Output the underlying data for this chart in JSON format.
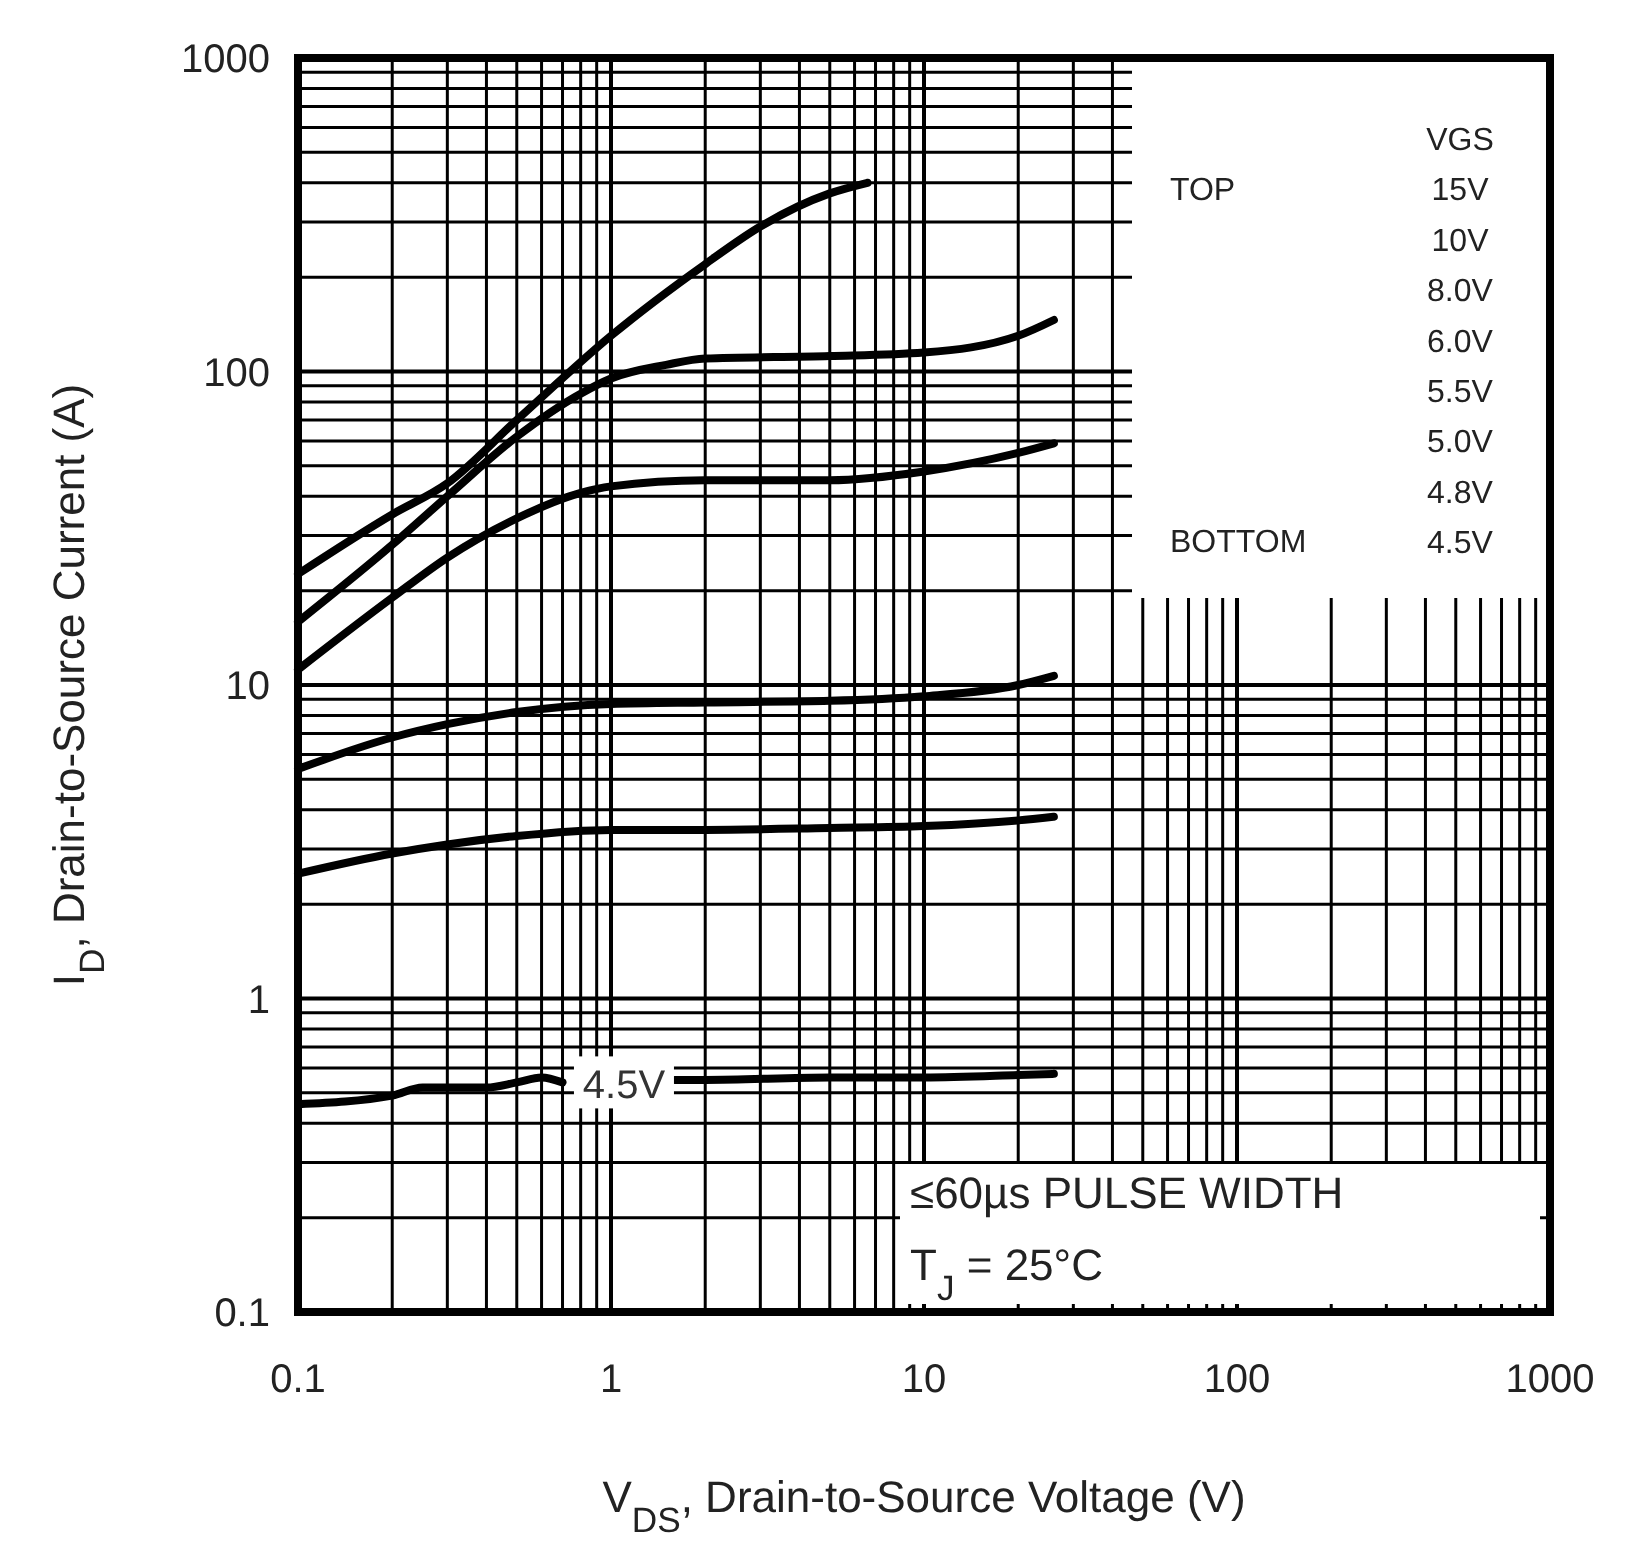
{
  "chart_data": {
    "type": "line",
    "xlabel": "V$_{DS}$, Drain-to-Source Voltage (V)",
    "ylabel": "I$_{D}$, Drain-to-Source Current (A)",
    "log": "xy",
    "xlim": [
      0.1,
      1000
    ],
    "ylim": [
      0.1,
      1000
    ],
    "xticks": [
      0.1,
      1,
      10,
      100,
      1000
    ],
    "yticks": [
      0.1,
      1,
      10,
      100,
      1000
    ],
    "grid": true,
    "line_style": "solid",
    "annotations": [
      "TOP",
      "BOTTOM",
      "VGS",
      "15V",
      "10V",
      "8.0V",
      "6.0V",
      "5.5V",
      "5.0V",
      "4.8V",
      "4.5V",
      "≤60µs PULSE WIDTH",
      "T$_{J}$ = 25°C"
    ],
    "series": [
      {
        "color": "#000000",
        "x": [
          0.1,
          0.2,
          0.3,
          0.5,
          1,
          2,
          3,
          5,
          6.6
        ],
        "values": [
          22.6,
          35,
          44,
          70,
          130,
          220,
          290,
          370,
          400
        ]
      },
      {
        "color": "#000000",
        "x": [
          0.1,
          0.2,
          0.3,
          0.5,
          0.8,
          1,
          1.5,
          2,
          5,
          10,
          20,
          26
        ],
        "values": [
          15.9,
          28,
          40,
          62,
          85,
          95,
          105,
          110,
          112,
          115,
          130,
          146
        ]
      },
      {
        "color": "#000000",
        "x": [
          0.1,
          0.2,
          0.3,
          0.5,
          0.8,
          1,
          2,
          5,
          10,
          20,
          26
        ],
        "values": [
          11.2,
          19,
          25.5,
          34,
          41,
          43,
          45,
          45,
          48,
          55,
          59
        ]
      },
      {
        "color": "#000000",
        "x": [
          0.1,
          0.2,
          0.3,
          0.5,
          1,
          2,
          5,
          10,
          20,
          26
        ],
        "values": [
          5.4,
          6.8,
          7.5,
          8.2,
          8.7,
          8.8,
          8.9,
          9.2,
          10,
          10.7
        ]
      },
      {
        "color": "#000000",
        "x": [
          0.1,
          0.2,
          0.3,
          0.5,
          1,
          2,
          5,
          10,
          20,
          26
        ],
        "values": [
          2.5,
          2.9,
          3.1,
          3.3,
          3.45,
          3.45,
          3.5,
          3.55,
          3.7,
          3.8
        ]
      },
      {
        "name": "4.5V",
        "color": "#000000",
        "x": [
          0.1,
          0.2,
          0.25,
          0.3,
          0.4,
          0.5,
          0.6,
          0.7,
          1.1,
          1.6,
          2,
          5,
          10,
          20,
          26
        ],
        "values": [
          0.46,
          0.49,
          0.52,
          0.52,
          0.52,
          0.54,
          0.56,
          0.54,
          null,
          0.55,
          0.55,
          0.56,
          0.56,
          0.57,
          0.575
        ]
      }
    ]
  }
}
